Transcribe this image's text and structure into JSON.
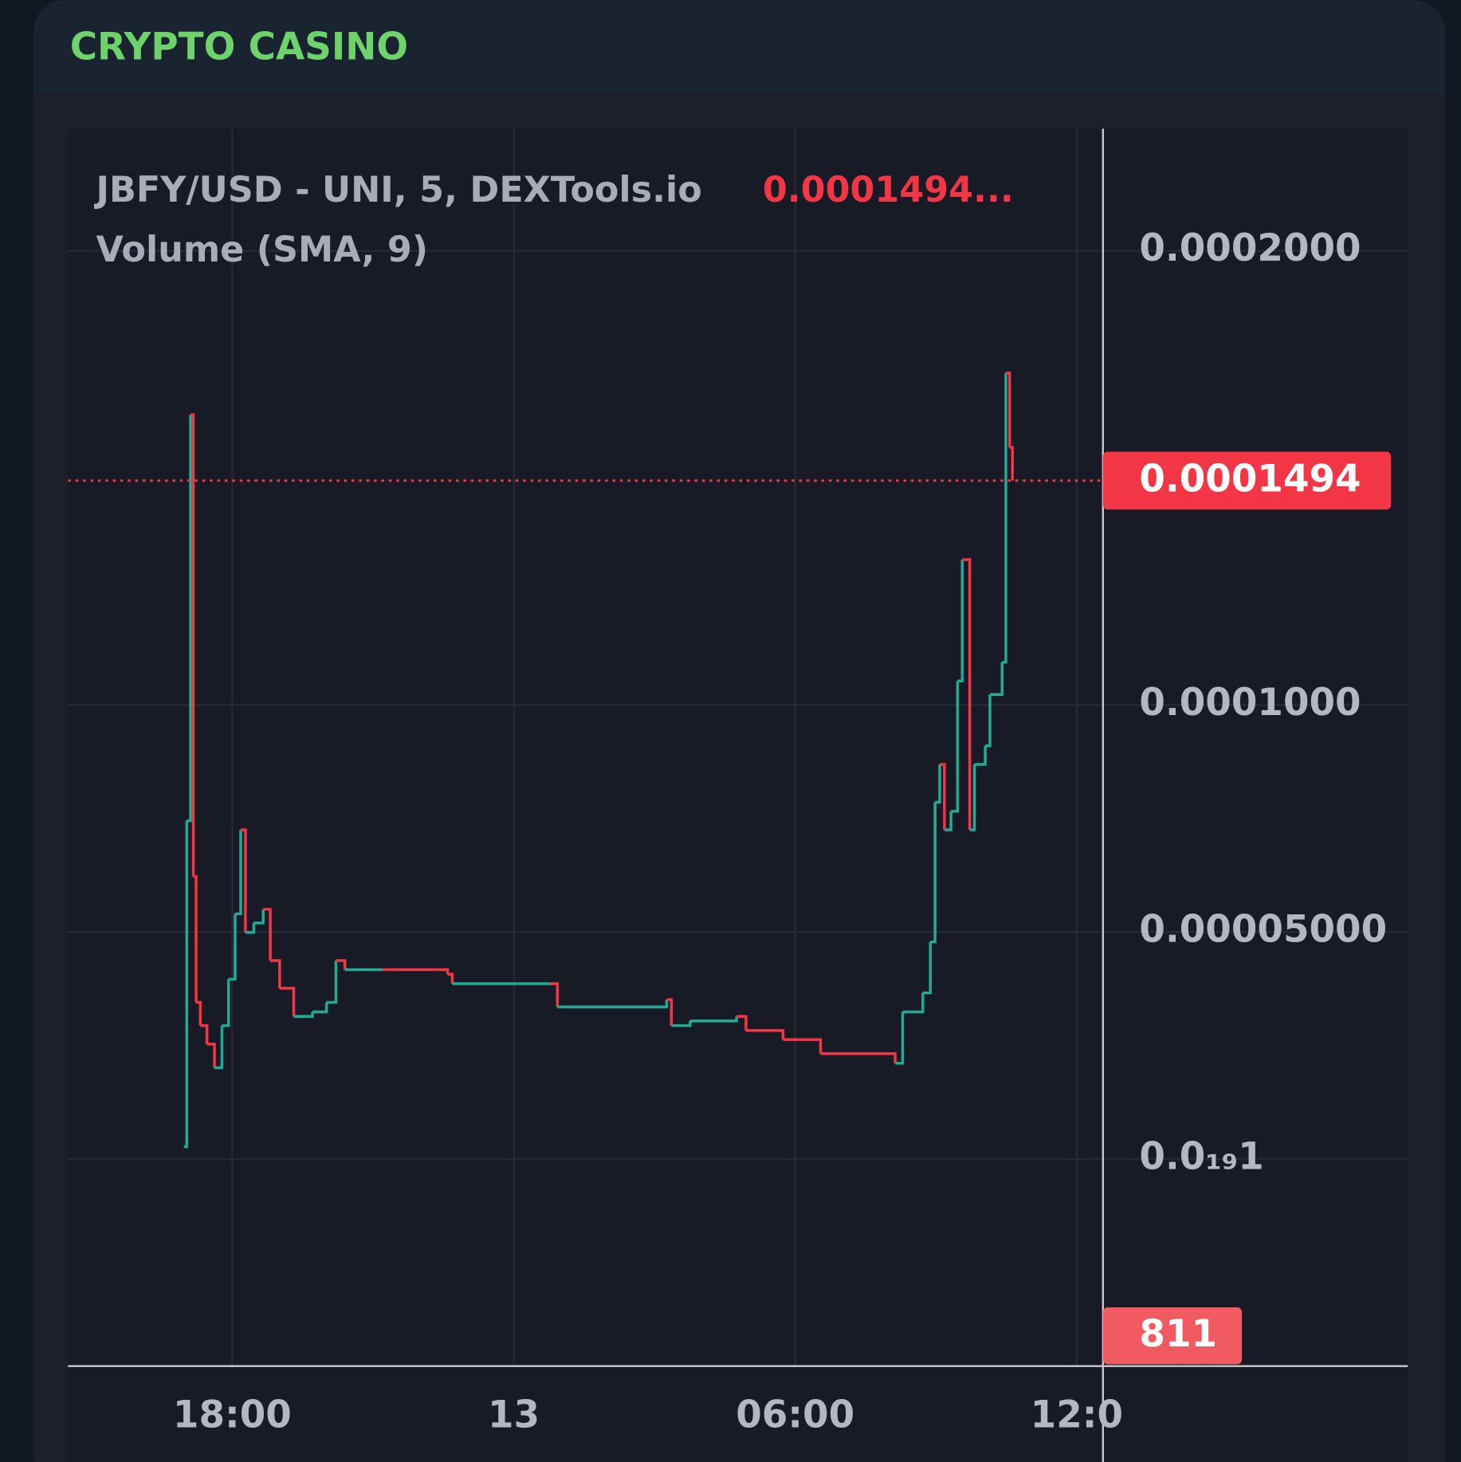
{
  "header": {
    "title": "CRYPTO CASINO"
  },
  "chart_data": {
    "type": "line",
    "legend_title": "JBFY/USD - UNI, 5, DEXTools.io",
    "legend_price": "0.0001494...",
    "volume_legend": "Volume (SMA, 9)",
    "x": [
      16.97,
      17.03,
      17.11,
      17.17,
      17.23,
      17.32,
      17.46,
      17.62,
      17.78,
      17.92,
      18.06,
      18.18,
      18.28,
      18.46,
      18.66,
      18.81,
      19.01,
      19.31,
      19.71,
      20.01,
      20.21,
      20.4,
      21.2,
      22.59,
      22.69,
      24.78,
      24.93,
      27.26,
      27.36,
      27.76,
      28.75,
      28.95,
      29.74,
      30.54,
      32.13,
      32.29,
      32.72,
      32.88,
      32.98,
      33.08,
      33.18,
      33.32,
      33.46,
      33.56,
      33.72,
      33.82,
      34.05,
      34.15,
      34.41,
      34.49,
      34.57,
      34.63
    ],
    "values": [
      2.7e-06,
      7.45e-05,
      0.0001639,
      6.22e-05,
      3.45e-05,
      2.94e-05,
      2.53e-05,
      2.01e-05,
      2.94e-05,
      3.96e-05,
      5.4e-05,
      7.25e-05,
      4.99e-05,
      5.2e-05,
      5.5e-05,
      4.37e-05,
      3.76e-05,
      3.14e-05,
      3.24e-05,
      3.45e-05,
      4.37e-05,
      4.17e-05,
      4.17e-05,
      4.07e-05,
      3.86e-05,
      3.86e-05,
      3.35e-05,
      3.51e-05,
      2.94e-05,
      3.04e-05,
      3.14e-05,
      2.83e-05,
      2.63e-05,
      2.32e-05,
      2.11e-05,
      3.24e-05,
      3.66e-05,
      4.78e-05,
      7.86e-05,
      8.69e-05,
      7.25e-05,
      7.66e-05,
      0.0001053,
      0.000132,
      7.25e-05,
      8.69e-05,
      9.1e-05,
      0.0001023,
      0.0001094,
      0.0001731,
      0.0001567,
      0.0001494
    ],
    "up_color": "#22ab94",
    "down_color": "#f23645",
    "last_price": 0.0001494,
    "last_volume": 811,
    "xlim": [
      14.5,
      36.56
    ],
    "xticks": [
      {
        "value": 18,
        "label": "18:00"
      },
      {
        "value": 24,
        "label": "13"
      },
      {
        "value": 30,
        "label": "06:00"
      },
      {
        "value": 36,
        "label": "12:0"
      }
    ],
    "ylim": [
      -4.56e-05,
      0.0002269
    ],
    "yticks": [
      {
        "value": 0.0002,
        "label": "0.0002000"
      },
      {
        "value": 0.0001,
        "label": "0.0001000"
      },
      {
        "value": 5e-05,
        "label": "0.00005000"
      },
      {
        "value": 1e-20,
        "label": "0.0₁₉1"
      }
    ],
    "grid": true
  }
}
